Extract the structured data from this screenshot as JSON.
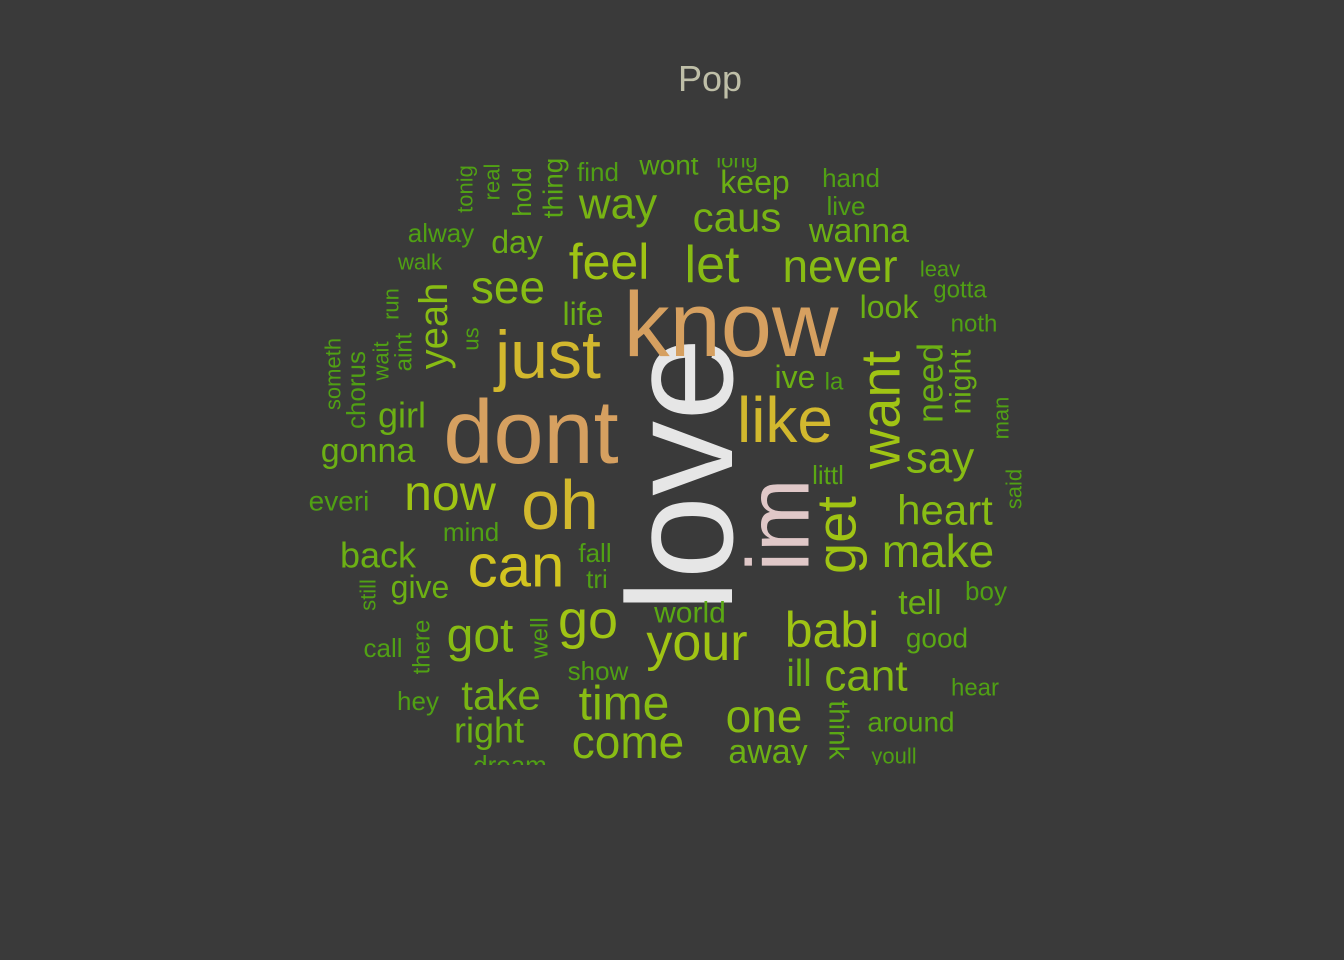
{
  "chart_data": {
    "type": "wordcloud",
    "title": "Pop",
    "words": [
      {
        "text": "love",
        "weight": 100,
        "color": "#e6e6e6"
      },
      {
        "text": "know",
        "weight": 80,
        "color": "#d6a060"
      },
      {
        "text": "dont",
        "weight": 78,
        "color": "#d6a060"
      },
      {
        "text": "im",
        "weight": 76,
        "color": "#e0c8c8"
      },
      {
        "text": "oh",
        "weight": 62,
        "color": "#d2b82e"
      },
      {
        "text": "just",
        "weight": 60,
        "color": "#d2b82e"
      },
      {
        "text": "like",
        "weight": 56,
        "color": "#d2b82e"
      },
      {
        "text": "can",
        "weight": 52,
        "color": "#d2c420"
      },
      {
        "text": "want",
        "weight": 50,
        "color": "#a0c414"
      },
      {
        "text": "get",
        "weight": 48,
        "color": "#a0c414"
      },
      {
        "text": "go",
        "weight": 46,
        "color": "#a0c414"
      },
      {
        "text": "your",
        "weight": 46,
        "color": "#a0c414"
      },
      {
        "text": "now",
        "weight": 44,
        "color": "#a0c414"
      },
      {
        "text": "babi",
        "weight": 44,
        "color": "#a0c414"
      },
      {
        "text": "feel",
        "weight": 42,
        "color": "#a0c414"
      },
      {
        "text": "let",
        "weight": 42,
        "color": "#88bc14"
      },
      {
        "text": "never",
        "weight": 40,
        "color": "#88bc14"
      },
      {
        "text": "got",
        "weight": 40,
        "color": "#88bc14"
      },
      {
        "text": "make",
        "weight": 40,
        "color": "#88bc14"
      },
      {
        "text": "time",
        "weight": 40,
        "color": "#88bc14"
      },
      {
        "text": "come",
        "weight": 40,
        "color": "#88bc14"
      },
      {
        "text": "see",
        "weight": 38,
        "color": "#88bc14"
      },
      {
        "text": "one",
        "weight": 38,
        "color": "#88bc14"
      },
      {
        "text": "say",
        "weight": 38,
        "color": "#88bc14"
      },
      {
        "text": "cant",
        "weight": 38,
        "color": "#88bc14"
      },
      {
        "text": "yeah",
        "weight": 36,
        "color": "#88bc14"
      },
      {
        "text": "heart",
        "weight": 36,
        "color": "#88bc14"
      },
      {
        "text": "take",
        "weight": 36,
        "color": "#78b414"
      },
      {
        "text": "way",
        "weight": 36,
        "color": "#78b414"
      },
      {
        "text": "caus",
        "weight": 34,
        "color": "#78b414"
      },
      {
        "text": "need",
        "weight": 32,
        "color": "#6cb014"
      },
      {
        "text": "ill",
        "weight": 30,
        "color": "#6cb014"
      },
      {
        "text": "girl",
        "weight": 30,
        "color": "#6cb014"
      },
      {
        "text": "back",
        "weight": 30,
        "color": "#6cb014"
      },
      {
        "text": "right",
        "weight": 30,
        "color": "#6cb014"
      },
      {
        "text": "away",
        "weight": 30,
        "color": "#6cb014"
      },
      {
        "text": "wanna",
        "weight": 30,
        "color": "#6cb014"
      },
      {
        "text": "look",
        "weight": 28,
        "color": "#6cb014"
      },
      {
        "text": "gonna",
        "weight": 28,
        "color": "#6cb014"
      },
      {
        "text": "keep",
        "weight": 28,
        "color": "#6cb014"
      },
      {
        "text": "give",
        "weight": 28,
        "color": "#6cb014"
      },
      {
        "text": "night",
        "weight": 28,
        "color": "#6cb014"
      },
      {
        "text": "tell",
        "weight": 28,
        "color": "#6cb014"
      },
      {
        "text": "day",
        "weight": 28,
        "color": "#6cb014"
      },
      {
        "text": "life",
        "weight": 28,
        "color": "#6cb014"
      },
      {
        "text": "ive",
        "weight": 28,
        "color": "#6cb014"
      },
      {
        "text": "world",
        "weight": 26,
        "color": "#5aa814"
      },
      {
        "text": "around",
        "weight": 26,
        "color": "#5aa814"
      },
      {
        "text": "think",
        "weight": 26,
        "color": "#5aa814"
      },
      {
        "text": "littl",
        "weight": 24,
        "color": "#5aa814"
      },
      {
        "text": "wont",
        "weight": 24,
        "color": "#5aa814"
      },
      {
        "text": "good",
        "weight": 24,
        "color": "#5aa814"
      },
      {
        "text": "thing",
        "weight": 24,
        "color": "#5aa814"
      },
      {
        "text": "hold",
        "weight": 24,
        "color": "#5aa814"
      },
      {
        "text": "everi",
        "weight": 24,
        "color": "#50a014"
      },
      {
        "text": "alway",
        "weight": 24,
        "color": "#50a014"
      },
      {
        "text": "mind",
        "weight": 24,
        "color": "#50a014"
      },
      {
        "text": "fall",
        "weight": 24,
        "color": "#50a014"
      },
      {
        "text": "hand",
        "weight": 24,
        "color": "#50a014"
      },
      {
        "text": "live",
        "weight": 24,
        "color": "#50a014"
      },
      {
        "text": "noth",
        "weight": 24,
        "color": "#50a014"
      },
      {
        "text": "gotta",
        "weight": 24,
        "color": "#50a014"
      },
      {
        "text": "boy",
        "weight": 24,
        "color": "#50a014"
      },
      {
        "text": "hear",
        "weight": 24,
        "color": "#50a014"
      },
      {
        "text": "hey",
        "weight": 24,
        "color": "#50a014"
      },
      {
        "text": "call",
        "weight": 24,
        "color": "#50a014"
      },
      {
        "text": "chorus",
        "weight": 24,
        "color": "#50a014"
      },
      {
        "text": "aint",
        "weight": 24,
        "color": "#50a014"
      },
      {
        "text": "well",
        "weight": 24,
        "color": "#50a014"
      },
      {
        "text": "there",
        "weight": 24,
        "color": "#50a014"
      },
      {
        "text": "find",
        "weight": 24,
        "color": "#50a014"
      },
      {
        "text": "show",
        "weight": 24,
        "color": "#50a014"
      },
      {
        "text": "tri",
        "weight": 24,
        "color": "#50a014"
      },
      {
        "text": "la",
        "weight": 22,
        "color": "#50a014"
      },
      {
        "text": "us",
        "weight": 22,
        "color": "#50a014"
      },
      {
        "text": "walk",
        "weight": 22,
        "color": "#50a014"
      },
      {
        "text": "leav",
        "weight": 22,
        "color": "#50a014"
      },
      {
        "text": "run",
        "weight": 22,
        "color": "#50a014"
      },
      {
        "text": "wait",
        "weight": 22,
        "color": "#50a014"
      },
      {
        "text": "still",
        "weight": 22,
        "color": "#50a014"
      },
      {
        "text": "youll",
        "weight": 22,
        "color": "#50a014"
      },
      {
        "text": "dream",
        "weight": 22,
        "color": "#50a014"
      },
      {
        "text": "said",
        "weight": 22,
        "color": "#50a014"
      },
      {
        "text": "man",
        "weight": 22,
        "color": "#50a014"
      },
      {
        "text": "real",
        "weight": 22,
        "color": "#50a014"
      },
      {
        "text": "tonig",
        "weight": 22,
        "color": "#50a014"
      },
      {
        "text": "someth",
        "weight": 22,
        "color": "#50a014"
      },
      {
        "text": "long",
        "weight": 22,
        "color": "#50a014"
      }
    ]
  }
}
